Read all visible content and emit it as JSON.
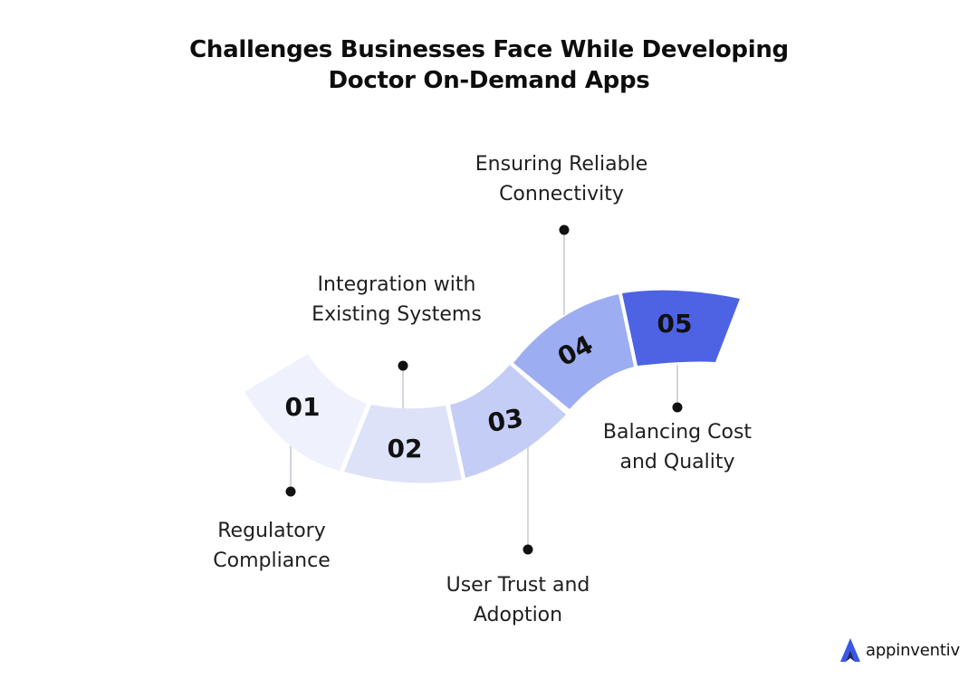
{
  "header": {
    "title_line1": "Challenges Businesses Face While Developing",
    "title_line2": "Doctor On-Demand Apps"
  },
  "steps": [
    {
      "number": "01",
      "label_line1": "Regulatory",
      "label_line2": "Compliance",
      "color": "#eff1fd"
    },
    {
      "number": "02",
      "label_line1": "Integration with",
      "label_line2": "Existing Systems",
      "color": "#dde2f9"
    },
    {
      "number": "03",
      "label_line1": "User Trust and",
      "label_line2": "Adoption",
      "color": "#c4cdf6"
    },
    {
      "number": "04",
      "label_line1": "Ensuring Reliable",
      "label_line2": "Connectivity",
      "color": "#9dadf1"
    },
    {
      "number": "05",
      "label_line1": "Balancing Cost",
      "label_line2": "and Quality",
      "color": "#4d63e4"
    }
  ],
  "brand": {
    "name": "appinventiv",
    "icon": "appinventiv-logo-icon",
    "color": "#3a57e8"
  }
}
